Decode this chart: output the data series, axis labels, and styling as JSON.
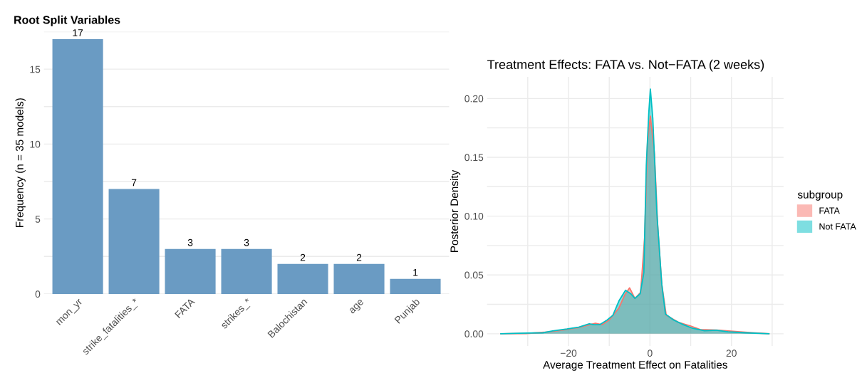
{
  "chart_data": [
    {
      "type": "bar",
      "title": "Root Split Variables",
      "ylabel": "Frequency (n = 35 models)",
      "categories": [
        "mon_yr",
        "strike_fatalities_*",
        "FATA",
        "strikes_*",
        "Balochistan",
        "age",
        "Punjab"
      ],
      "values": [
        17,
        7,
        3,
        3,
        2,
        2,
        1
      ],
      "color": "#6a9bc3",
      "data_labels": true,
      "ylim": [
        0,
        17.5
      ],
      "yticks": [
        0,
        {
          "value": 2.5,
          "label": null
        },
        5,
        {
          "value": 7.5,
          "label": null
        },
        10,
        {
          "value": 12.5,
          "label": null
        },
        15,
        {
          "value": 17.5,
          "label": null
        }
      ],
      "grid": "y"
    },
    {
      "type": "area",
      "title": "Treatment Effects: FATA vs. Not−FATA (2 weeks)",
      "xlabel": "Average Treatment Effect on Fatalities",
      "ylabel": "Posterior Density",
      "legend_title": "subgroup",
      "legend": "right",
      "series": [
        {
          "name": "FATA",
          "color": "#f8766d",
          "x": [
            -36.6,
            -30.4,
            -24.5,
            -20.4,
            -17.5,
            -13.4,
            -11.7,
            -9.9,
            -7.6,
            -6.2,
            -5.0,
            -3.7,
            -2.3,
            -1.3,
            -0.6,
            0.1,
            1.1,
            1.9,
            2.9,
            4.0,
            7.0,
            9.9,
            12.3,
            16.3,
            20.4,
            25.1,
            29.2
          ],
          "values": [
            0,
            0.0002,
            0.0016,
            0.0036,
            0.0052,
            0.0089,
            0.0077,
            0.012,
            0.022,
            0.033,
            0.039,
            0.03,
            0.035,
            0.082,
            0.163,
            0.185,
            0.153,
            0.092,
            0.042,
            0.0157,
            0.0097,
            0.0067,
            0.0036,
            0.0032,
            0.002,
            0.0008,
            0
          ]
        },
        {
          "name": "Not FATA",
          "color": "#00bfc4",
          "x": [
            -36.6,
            -32.1,
            -26.3,
            -23.9,
            -20.4,
            -17.5,
            -14.9,
            -13.7,
            -12.3,
            -10.5,
            -9.1,
            -7.6,
            -6.0,
            -4.7,
            -3.7,
            -2.4,
            -1.5,
            -0.9,
            -0.3,
            0.1,
            0.7,
            1.7,
            2.9,
            3.8,
            5.8,
            8.2,
            10.5,
            13.4,
            16.3,
            19.2,
            23.3,
            29.2
          ],
          "values": [
            0,
            0.0004,
            0.0008,
            0.0024,
            0.004,
            0.0056,
            0.0085,
            0.0077,
            0.0077,
            0.0117,
            0.0157,
            0.028,
            0.037,
            0.034,
            0.03,
            0.034,
            0.052,
            0.143,
            0.187,
            0.208,
            0.183,
            0.102,
            0.042,
            0.0167,
            0.0117,
            0.0077,
            0.0046,
            0.0026,
            0.003,
            0.0016,
            0.0008,
            0
          ]
        }
      ],
      "xlim": [
        -40,
        32.8
      ],
      "xticks": [
        {
          "value": -30,
          "label": null
        },
        {
          "value": -20,
          "label": "−20"
        },
        {
          "value": -10,
          "label": null
        },
        0,
        {
          "value": 10,
          "label": null
        },
        20,
        {
          "value": 30,
          "label": null
        }
      ],
      "ylim": [
        -0.0104,
        0.2184
      ],
      "yticks": [
        {
          "value": 0,
          "label": "0.00"
        },
        {
          "value": 0.025,
          "label": null
        },
        {
          "value": 0.05,
          "label": "0.05"
        },
        {
          "value": 0.075,
          "label": null
        },
        {
          "value": 0.1,
          "label": "0.10"
        },
        {
          "value": 0.125,
          "label": null
        },
        {
          "value": 0.15,
          "label": "0.15"
        },
        {
          "value": 0.175,
          "label": null
        },
        {
          "value": 0.2,
          "label": "0.20"
        }
      ],
      "grid": true
    }
  ]
}
